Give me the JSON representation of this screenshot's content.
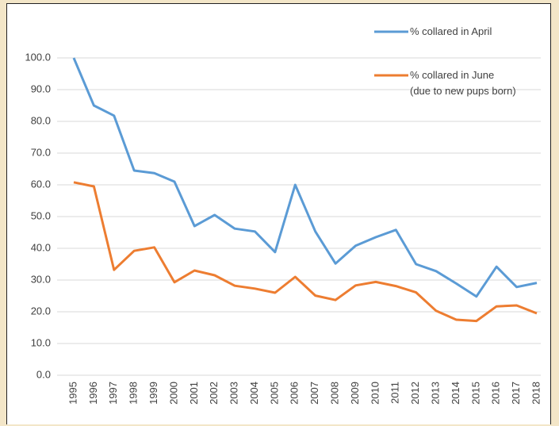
{
  "chart_data": {
    "type": "line",
    "categories": [
      "1995",
      "1996",
      "1997",
      "1998",
      "1999",
      "2000",
      "2001",
      "2002",
      "2003",
      "2004",
      "2005",
      "2006",
      "2007",
      "2008",
      "2009",
      "2010",
      "2011",
      "2012",
      "2013",
      "2014",
      "2015",
      "2016",
      "2017",
      "2018"
    ],
    "series": [
      {
        "name": "% collared in April",
        "color": "#5b9bd5",
        "values": [
          100,
          85,
          81.8,
          64.5,
          63.7,
          61,
          47,
          50.5,
          46.2,
          45.3,
          38.8,
          60,
          45.3,
          35.2,
          40.8,
          43.5,
          45.8,
          35,
          32.8,
          28.9,
          24.8,
          34.2,
          27.8,
          29.1
        ]
      },
      {
        "name": "% collared in June\n(due to new pups born)",
        "color": "#ed7d31",
        "values": [
          60.8,
          59.5,
          33.2,
          39.2,
          40.3,
          29.3,
          33,
          31.5,
          28.2,
          27.3,
          26,
          31,
          25.1,
          23.7,
          28.3,
          29.4,
          28.1,
          26.1,
          20.3,
          17.5,
          17.1,
          21.7,
          22,
          19.5
        ]
      }
    ],
    "ylim": [
      0,
      100
    ],
    "yticks": [
      {
        "value": 0,
        "label": "0.0"
      },
      {
        "value": 10,
        "label": "10.0"
      },
      {
        "value": 20,
        "label": "20.0"
      },
      {
        "value": 30,
        "label": "30.0"
      },
      {
        "value": 40,
        "label": "40.0"
      },
      {
        "value": 50,
        "label": "50.0"
      },
      {
        "value": 60,
        "label": "60.0"
      },
      {
        "value": 70,
        "label": "70.0"
      },
      {
        "value": 80,
        "label": "80.0"
      },
      {
        "value": 90,
        "label": "90.0"
      },
      {
        "value": 100,
        "label": "100.0"
      }
    ],
    "grid": true
  }
}
